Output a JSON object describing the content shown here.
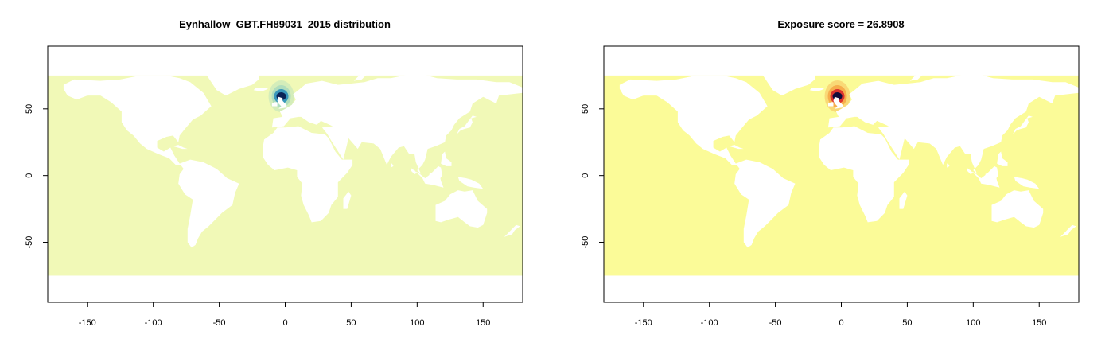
{
  "chart_data": [
    {
      "type": "heatmap",
      "title": "Eynhallow_GBT.FH89031_2015 distribution",
      "xlabel": "",
      "ylabel": "",
      "xlim": [
        -180,
        180
      ],
      "ylim": [
        -95,
        97
      ],
      "data_extent_lat": [
        -75,
        75
      ],
      "xticks": [
        -150,
        -100,
        -50,
        0,
        50,
        100,
        150
      ],
      "yticks": [
        -50,
        0,
        50
      ],
      "colors": {
        "background": "#f1f9b7",
        "hotspot_core": "#0b2356",
        "hotspot_mid": "#2c8fba",
        "hotspot_edge": "#9fd6bf"
      },
      "hotspot": {
        "lon": -3,
        "lat": 60
      },
      "land_mask": "white"
    },
    {
      "type": "heatmap",
      "title": "Exposure score = 26.8908",
      "xlabel": "",
      "ylabel": "",
      "xlim": [
        -180,
        180
      ],
      "ylim": [
        -95,
        97
      ],
      "data_extent_lat": [
        -75,
        75
      ],
      "xticks": [
        -150,
        -100,
        -50,
        0,
        50,
        100,
        150
      ],
      "yticks": [
        -50,
        0,
        50
      ],
      "colors": {
        "background": "#fbfb98",
        "hotspot_core": "#120b3b",
        "hotspot_mid": "#d9272c",
        "hotspot_edge": "#f59a3a"
      },
      "hotspot": {
        "lon": -3,
        "lat": 60
      },
      "land_mask": "white"
    }
  ]
}
